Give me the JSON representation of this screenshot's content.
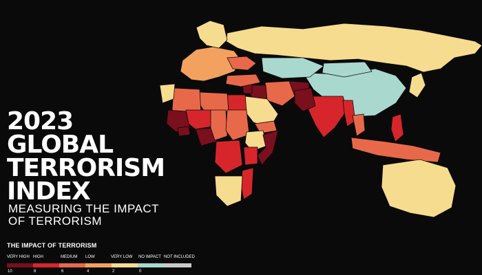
{
  "title": {
    "lines": [
      "2023",
      "GLOBAL",
      "TERRORISM",
      "INDEX"
    ],
    "subtitle_lines": [
      "MEASURING THE IMPACT",
      "OF TERRORISM"
    ]
  },
  "legend": {
    "title": "THE IMPACT OF TERRORISM",
    "categories": [
      {
        "label": "VERY HIGH",
        "color": "#7a0f1e"
      },
      {
        "label": "HIGH",
        "color": "#d6262b"
      },
      {
        "label": "MEDIUM",
        "color": "#e8694a"
      },
      {
        "label": "LOW",
        "color": "#f2a25e"
      },
      {
        "label": "VERY LOW",
        "color": "#f6dc8e"
      },
      {
        "label": "NO IMPACT",
        "color": "#a9d8cf"
      },
      {
        "label": "NOT INCLUDED",
        "color": "#c9c9c9"
      }
    ],
    "scale_values": [
      "10",
      "8",
      "6",
      "4",
      "2",
      "0"
    ]
  },
  "map": {
    "background": "#0b0a0a",
    "regions": [
      {
        "name": "Russia",
        "level": "VERY LOW"
      },
      {
        "name": "China",
        "level": "NO IMPACT"
      },
      {
        "name": "Mongolia",
        "level": "NO IMPACT"
      },
      {
        "name": "Kazakhstan",
        "level": "NO IMPACT"
      },
      {
        "name": "India",
        "level": "HIGH"
      },
      {
        "name": "Afghanistan",
        "level": "VERY HIGH"
      },
      {
        "name": "Pakistan",
        "level": "VERY HIGH"
      },
      {
        "name": "Iran",
        "level": "MEDIUM"
      },
      {
        "name": "Iraq",
        "level": "VERY HIGH"
      },
      {
        "name": "Syria",
        "level": "VERY HIGH"
      },
      {
        "name": "Saudi Arabia",
        "level": "VERY LOW"
      },
      {
        "name": "Yemen",
        "level": "MEDIUM"
      },
      {
        "name": "Egypt",
        "level": "HIGH"
      },
      {
        "name": "Libya",
        "level": "MEDIUM"
      },
      {
        "name": "Algeria",
        "level": "MEDIUM"
      },
      {
        "name": "Morocco",
        "level": "VERY LOW"
      },
      {
        "name": "Mali",
        "level": "VERY HIGH"
      },
      {
        "name": "Burkina Faso",
        "level": "VERY HIGH"
      },
      {
        "name": "Niger",
        "level": "HIGH"
      },
      {
        "name": "Nigeria",
        "level": "VERY HIGH"
      },
      {
        "name": "Chad",
        "level": "MEDIUM"
      },
      {
        "name": "Sudan",
        "level": "MEDIUM"
      },
      {
        "name": "Ethiopia",
        "level": "VERY LOW"
      },
      {
        "name": "Somalia",
        "level": "VERY HIGH"
      },
      {
        "name": "Kenya",
        "level": "HIGH"
      },
      {
        "name": "DR Congo",
        "level": "HIGH"
      },
      {
        "name": "Mozambique",
        "level": "HIGH"
      },
      {
        "name": "South Africa",
        "level": "VERY LOW"
      },
      {
        "name": "Myanmar",
        "level": "HIGH"
      },
      {
        "name": "Thailand",
        "level": "MEDIUM"
      },
      {
        "name": "Philippines",
        "level": "HIGH"
      },
      {
        "name": "Indonesia",
        "level": "MEDIUM"
      },
      {
        "name": "Japan",
        "level": "VERY LOW"
      },
      {
        "name": "Australia",
        "level": "VERY LOW"
      },
      {
        "name": "Europe",
        "level": "LOW"
      },
      {
        "name": "Scandinavia",
        "level": "VERY LOW"
      },
      {
        "name": "Ukraine",
        "level": "MEDIUM"
      },
      {
        "name": "Turkey",
        "level": "MEDIUM"
      }
    ]
  }
}
